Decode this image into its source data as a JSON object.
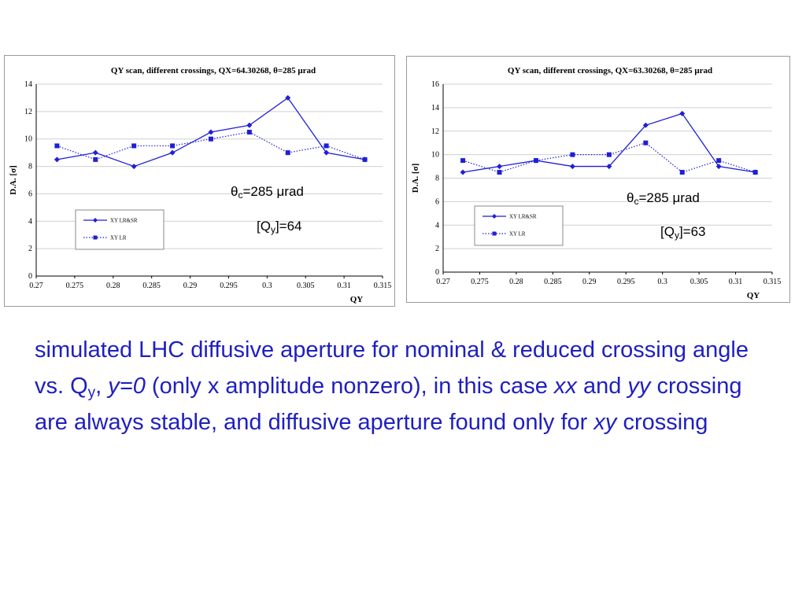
{
  "chart_data": [
    {
      "type": "line",
      "title": "QY scan, different crossings, QX=64.30268, θ=285 μrad",
      "xlabel": "QY",
      "ylabel": "D.A. [σ]",
      "xlim": [
        0.27,
        0.315
      ],
      "ylim": [
        0,
        14
      ],
      "xticks": [
        "0.27",
        "0.275",
        "0.28",
        "0.285",
        "0.29",
        "0.295",
        "0.3",
        "0.305",
        "0.31",
        "0.315"
      ],
      "yticks": [
        "0",
        "2",
        "4",
        "6",
        "8",
        "10",
        "12",
        "14"
      ],
      "grid": true,
      "legend": "left-middle",
      "series": [
        {
          "name": "XY LR&SR",
          "marker": "diamond",
          "style": "solid",
          "x": [
            0.2727,
            0.2777,
            0.2827,
            0.2877,
            0.2927,
            0.2977,
            0.3027,
            0.3077,
            0.3127
          ],
          "values": [
            8.5,
            9,
            8,
            9,
            10.5,
            11,
            13,
            9,
            8.5
          ]
        },
        {
          "name": "XY LR",
          "marker": "square",
          "style": "dotted",
          "x": [
            0.2727,
            0.2777,
            0.2827,
            0.2877,
            0.2927,
            0.2977,
            0.3027,
            0.3077,
            0.3127
          ],
          "values": [
            9.5,
            8.5,
            9.5,
            9.5,
            10,
            10.5,
            9,
            9.5,
            8.5
          ]
        }
      ],
      "annotation_theta": {
        "symbol": "θ",
        "sub": "c",
        "rest": "=285 μrad"
      },
      "annotation_q": {
        "pre": "[Q",
        "sub": "y",
        "rest": "]=64"
      }
    },
    {
      "type": "line",
      "title": "QY scan, different crossings, QX=63.30268, θ=285 μrad",
      "xlabel": "QY",
      "ylabel": "D.A. [σ]",
      "xlim": [
        0.27,
        0.315
      ],
      "ylim": [
        0,
        16
      ],
      "xticks": [
        "0.27",
        "0.275",
        "0.28",
        "0.285",
        "0.29",
        "0.295",
        "0.3",
        "0.305",
        "0.31",
        "0.315"
      ],
      "yticks": [
        "0",
        "2",
        "4",
        "6",
        "8",
        "10",
        "12",
        "14",
        "16"
      ],
      "grid": true,
      "legend": "left-middle",
      "series": [
        {
          "name": "XY LR&SR",
          "marker": "diamond",
          "style": "solid",
          "x": [
            0.2727,
            0.2777,
            0.2827,
            0.2877,
            0.2927,
            0.2977,
            0.3027,
            0.3077,
            0.3127
          ],
          "values": [
            8.5,
            9,
            9.5,
            9,
            9,
            12.5,
            13.5,
            9,
            8.5
          ]
        },
        {
          "name": "XY LR",
          "marker": "square",
          "style": "dotted",
          "x": [
            0.2727,
            0.2777,
            0.2827,
            0.2877,
            0.2927,
            0.2977,
            0.3027,
            0.3077,
            0.3127
          ],
          "values": [
            9.5,
            8.5,
            9.5,
            10,
            10,
            11,
            8.5,
            9.5,
            8.5
          ]
        }
      ],
      "annotation_theta": {
        "symbol": "θ",
        "sub": "c",
        "rest": "=285 μrad"
      },
      "annotation_q": {
        "pre": "[Q",
        "sub": "y",
        "rest": "]=63"
      }
    }
  ],
  "caption": {
    "part1": "simulated LHC diffusive aperture for nominal & reduced crossing angle vs. Q",
    "sub_y": "y",
    "part2": ", ",
    "italic_y0": "y=0",
    "part3": " (only x amplitude nonzero), in this case ",
    "italic_xx": "xx",
    "part4": " and ",
    "italic_yy": "yy",
    "part5": " crossing are always stable, and diffusive aperture found only for ",
    "italic_xy": "xy",
    "part6": " crossing"
  },
  "colors": {
    "series": "#1f1fd6",
    "caption": "#1f1fbf",
    "grid": "#d0d0d0",
    "frame": "#9a9a9a"
  }
}
